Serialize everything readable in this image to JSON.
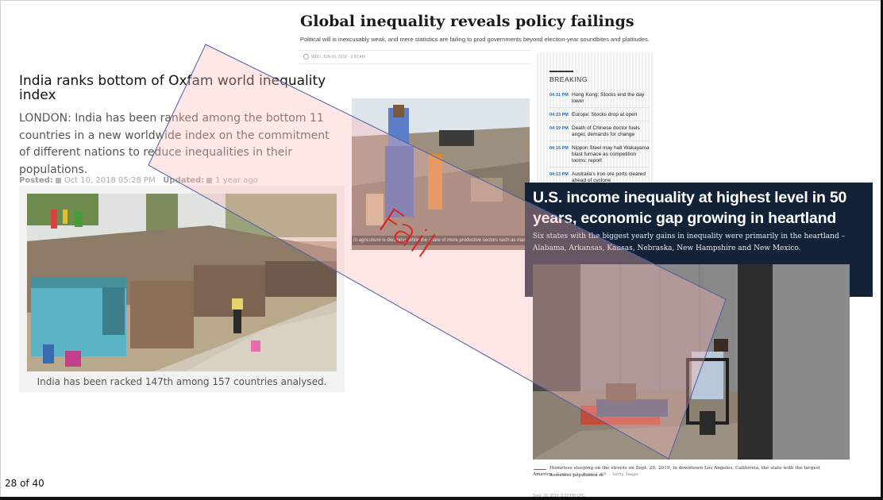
{
  "global_article": {
    "title": "Global inequality reveals policy failings",
    "subtitle": "Political will is inexcusably weak, and mere statistics are failing to prod governments beyond election-year soundbites and platitudes.",
    "meta": "WED, JUN 06, 2018 - 1:50 AM"
  },
  "breaking": {
    "label": "BREAKING",
    "items": [
      {
        "time": "04:31 PM",
        "text": "Hong Kong: Stocks end the day lower"
      },
      {
        "time": "04:23 PM",
        "text": "Europe: Stocks drop at open"
      },
      {
        "time": "04:19 PM",
        "text": "Death of Chinese doctor fuels anger, demands for change"
      },
      {
        "time": "04:15 PM",
        "text": "Nippon Steel may halt Wakayama blast furnace as competition looms: report"
      },
      {
        "time": "04:13 PM",
        "text": "Australia's iron ore ports cleared ahead of cyclone"
      }
    ]
  },
  "india_article": {
    "title": "India ranks bottom of Oxfam world inequality index",
    "body": "LONDON: India has been ranked among the bottom 11 countries in a new worldwide index on the commitment of different nations to reduce inequalities in their populations.",
    "posted_label": "Posted:",
    "posted_value": "Oct 10, 2018 05:28 PM",
    "updated_label": "Updated:",
    "updated_value": "1 year ago",
    "caption": "India has been racked 147th among 157 countries analysed."
  },
  "agri_photo": {
    "caption": "In agriculture is declining, while the share of more productive sectors such as manufacturing"
  },
  "us_article": {
    "title": "U.S. income inequality at highest level in 50 years, economic gap growing in heartland",
    "subtitle": "Six states with the biggest yearly gains in inequality were primarily in the heartland – Alabama, Arkansas, Kansas, Nebraska, New Hampshire and New Mexico.",
    "caption": "Homeless sleeping on the streets on Sept. 20, 2019, in downtown Los Angeles, California, the state with the largest homeless population in",
    "caption_end": "America.",
    "credit": "Frederic J. Brown / AFP - Getty Images",
    "date": "Sept. 26, 2019, 8:32 PM UTC"
  },
  "annotation": {
    "text": "Fail",
    "color": "#e0221f"
  },
  "slide": {
    "page": "28 of 40"
  }
}
